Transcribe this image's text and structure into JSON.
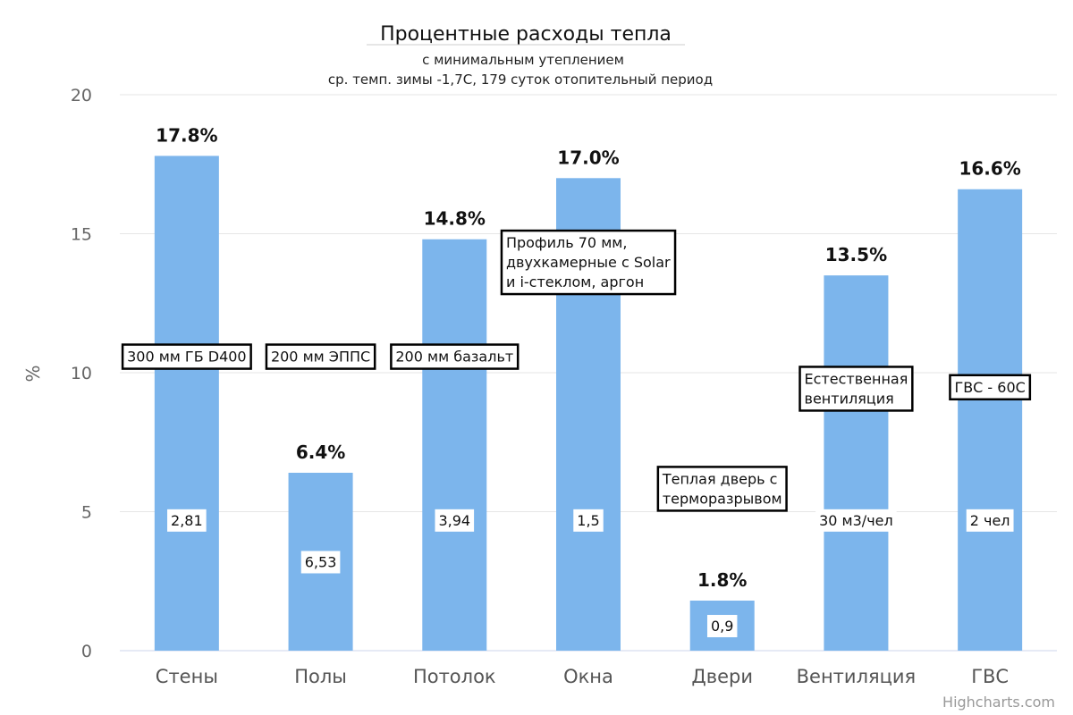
{
  "chart_data": {
    "type": "bar",
    "title": "Процентные расходы тепла",
    "subtitle_lines": [
      "с минимальным утеплением",
      "ср. темп. зимы -1,7С, 179 суток отопительный период"
    ],
    "ylabel": "%",
    "xlabel": "",
    "ylim": [
      0,
      20
    ],
    "yticks": [
      0,
      5,
      10,
      15,
      20
    ],
    "grid": true,
    "legend": false,
    "bar_color": "#7cb5ec",
    "categories": [
      "Стены",
      "Полы",
      "Потолок",
      "Окна",
      "Двери",
      "Вентиляция",
      "ГВС"
    ],
    "values": [
      17.8,
      6.4,
      14.8,
      17.0,
      1.8,
      13.5,
      16.6
    ],
    "data_labels": [
      "17.8%",
      "6.4%",
      "14.8%",
      "17.0%",
      "1.8%",
      "13.5%",
      "16.6%"
    ],
    "inner_labels": [
      "2,81",
      "6,53",
      "3,94",
      "1,5",
      "0,9",
      "30 м3/чел",
      "2 чел"
    ],
    "annotations": [
      {
        "category": "Стены",
        "lines": [
          "300 мм ГБ D400"
        ],
        "y": 10.4
      },
      {
        "category": "Полы",
        "lines": [
          "200 мм ЭППС"
        ],
        "y": 10.4
      },
      {
        "category": "Потолок",
        "lines": [
          "200 мм базальт"
        ],
        "y": 10.4
      },
      {
        "category": "Окна",
        "lines": [
          "Профиль 70 мм,",
          "двухкамерные с Solar",
          "и i-стеклом, аргон"
        ],
        "y": 14.5
      },
      {
        "category": "Двери",
        "lines": [
          "Теплая дверь с",
          "терморазрывом"
        ],
        "y": 6.0
      },
      {
        "category": "Вентиляция",
        "lines": [
          "Естественная",
          "вентиляция"
        ],
        "y": 9.6
      },
      {
        "category": "ГВС",
        "lines": [
          "ГВС - 60С"
        ],
        "y": 9.3
      }
    ]
  },
  "credits": "Highcharts.com"
}
